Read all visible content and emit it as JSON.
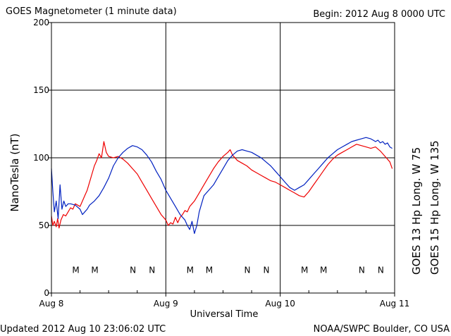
{
  "chart_data": {
    "type": "line",
    "title": "GOES Magnetometer (1 minute data)",
    "begin_label": "Begin:  2012 Aug 8 0000 UTC",
    "xlabel": "Universal Time",
    "ylabel": "NanoTesla (nT)",
    "ylim": [
      0,
      200
    ],
    "xlim": [
      0,
      72
    ],
    "x_unit": "hours since Aug 8 0000 UTC",
    "yticks": [
      0,
      50,
      100,
      150,
      200
    ],
    "ytick_labels": [
      "0",
      "50",
      "100",
      "150",
      "200"
    ],
    "xticks": [
      0,
      24,
      48,
      72
    ],
    "xtick_labels": [
      "Aug 8",
      "Aug 9",
      "Aug 10",
      "Aug 11"
    ],
    "grid": true,
    "legend_position": "right-vertical",
    "series": [
      {
        "name": "GOES 13 Hp  Long. W 75",
        "color": "#ee0000",
        "x": [
          0,
          0.3,
          0.6,
          1.0,
          1.3,
          1.6,
          2.0,
          2.5,
          3.0,
          3.5,
          4.0,
          4.5,
          5.0,
          5.5,
          6.0,
          6.5,
          7.0,
          7.5,
          8.0,
          8.5,
          9.0,
          9.5,
          10.0,
          10.5,
          11.0,
          11.5,
          12.0,
          13.0,
          14.0,
          15.0,
          16.0,
          17.0,
          18.0,
          19.0,
          20.0,
          21.0,
          22.0,
          23.0,
          24.0,
          24.5,
          25.0,
          25.5,
          26.0,
          26.5,
          27.0,
          27.5,
          28.0,
          28.5,
          29.0,
          29.5,
          30.0,
          30.5,
          31.0,
          32.0,
          33.0,
          34.0,
          35.0,
          36.0,
          37.0,
          37.5,
          38.0,
          39.0,
          40.0,
          41.0,
          42.0,
          43.0,
          44.0,
          45.0,
          46.0,
          47.0,
          48.0,
          49.0,
          50.0,
          51.0,
          52.0,
          53.0,
          54.0,
          55.0,
          56.0,
          57.0,
          58.0,
          59.0,
          60.0,
          61.0,
          62.0,
          63.0,
          64.0,
          65.0,
          66.0,
          67.0,
          68.0,
          69.0,
          70.0,
          71.0,
          71.5
        ],
        "values": [
          57,
          50,
          53,
          49,
          55,
          48,
          54,
          58,
          57,
          60,
          63,
          62,
          66,
          65,
          64,
          68,
          72,
          76,
          82,
          88,
          94,
          98,
          103,
          100,
          112,
          104,
          101,
          100,
          101,
          99,
          96,
          92,
          88,
          82,
          76,
          70,
          64,
          58,
          54,
          50,
          52,
          51,
          56,
          52,
          56,
          58,
          61,
          60,
          64,
          66,
          68,
          71,
          74,
          80,
          86,
          92,
          97,
          101,
          104,
          106,
          102,
          98,
          96,
          94,
          91,
          89,
          87,
          85,
          83,
          82,
          80,
          78,
          76,
          74,
          72,
          71,
          75,
          80,
          85,
          90,
          95,
          99,
          102,
          104,
          106,
          108,
          110,
          109,
          108,
          107,
          108,
          105,
          101,
          97,
          92
        ]
      },
      {
        "name": "GOES 15 Hp  Long. W 135",
        "color": "#0020c0",
        "x": [
          0,
          0.3,
          0.6,
          1.0,
          1.4,
          1.8,
          2.2,
          2.6,
          3.0,
          3.5,
          4.0,
          5.0,
          6.0,
          6.5,
          7.0,
          7.5,
          8.0,
          9.0,
          10.0,
          11.0,
          12.0,
          13.0,
          14.0,
          15.0,
          16.0,
          17.0,
          18.0,
          19.0,
          20.0,
          21.0,
          22.0,
          23.0,
          24.0,
          25.0,
          26.0,
          27.0,
          28.0,
          28.5,
          29.0,
          29.5,
          30.0,
          30.5,
          31.0,
          32.0,
          33.0,
          34.0,
          35.0,
          36.0,
          37.0,
          38.0,
          39.0,
          40.0,
          41.0,
          42.0,
          43.0,
          44.0,
          45.0,
          46.0,
          47.0,
          48.0,
          49.0,
          50.0,
          51.0,
          52.0,
          53.0,
          54.0,
          55.0,
          56.0,
          57.0,
          58.0,
          59.0,
          60.0,
          61.0,
          62.0,
          63.0,
          64.0,
          65.0,
          66.0,
          67.0,
          67.5,
          68.0,
          68.5,
          69.0,
          69.5,
          70.0,
          70.5,
          71.0,
          71.5
        ],
        "values": [
          92,
          75,
          60,
          68,
          55,
          80,
          62,
          68,
          64,
          66,
          66,
          65,
          62,
          58,
          60,
          62,
          65,
          68,
          72,
          78,
          85,
          94,
          100,
          104,
          107,
          109,
          108,
          106,
          102,
          97,
          90,
          84,
          76,
          70,
          64,
          58,
          54,
          50,
          47,
          53,
          44,
          50,
          60,
          72,
          76,
          80,
          86,
          92,
          98,
          102,
          105,
          106,
          105,
          104,
          102,
          100,
          97,
          94,
          90,
          86,
          82,
          78,
          76,
          78,
          80,
          84,
          88,
          92,
          96,
          100,
          103,
          106,
          108,
          110,
          112,
          113,
          114,
          115,
          114,
          113,
          112,
          113,
          111,
          112,
          110,
          111,
          108,
          107
        ]
      }
    ],
    "annotations": [
      {
        "label": "M",
        "x": 5.1,
        "y": 17,
        "color": "#ee0000"
      },
      {
        "label": "M",
        "x": 9.1,
        "y": 17,
        "color": "#0020c0"
      },
      {
        "label": "N",
        "x": 17.1,
        "y": 17,
        "color": "#ee0000"
      },
      {
        "label": "N",
        "x": 21.1,
        "y": 17,
        "color": "#0020c0"
      },
      {
        "label": "M",
        "x": 29.1,
        "y": 17,
        "color": "#ee0000"
      },
      {
        "label": "M",
        "x": 33.1,
        "y": 17,
        "color": "#0020c0"
      },
      {
        "label": "N",
        "x": 41.1,
        "y": 17,
        "color": "#ee0000"
      },
      {
        "label": "N",
        "x": 45.1,
        "y": 17,
        "color": "#0020c0"
      },
      {
        "label": "M",
        "x": 53.1,
        "y": 17,
        "color": "#ee0000"
      },
      {
        "label": "M",
        "x": 57.1,
        "y": 17,
        "color": "#0020c0"
      },
      {
        "label": "N",
        "x": 65.1,
        "y": 17,
        "color": "#ee0000"
      },
      {
        "label": "N",
        "x": 69.1,
        "y": 17,
        "color": "#0020c0"
      }
    ]
  },
  "footer": {
    "updated": "Updated 2012 Aug 10 23:06:02 UTC",
    "source": "NOAA/SWPC Boulder, CO USA"
  },
  "colors": {
    "goes13": "#ee0000",
    "goes15": "#0020c0",
    "frame": "#000000",
    "background": "#ffffff"
  }
}
